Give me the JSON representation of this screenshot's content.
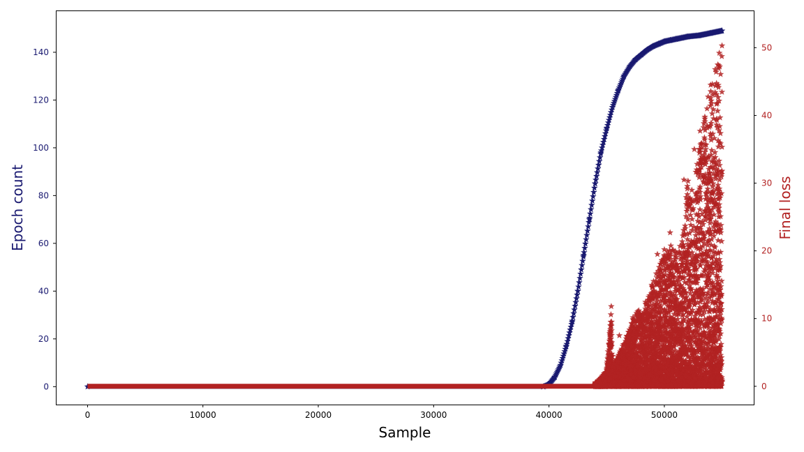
{
  "chart_data": {
    "type": "scatter",
    "title": "",
    "xlabel": "Sample",
    "ylabel": "Epoch count",
    "y2label": "Final loss",
    "xlim": [
      -2750,
      57750
    ],
    "ylim": [
      -7.5,
      157.5
    ],
    "y2lim": [
      -2.7,
      55.5
    ],
    "x_ticks": [
      0,
      10000,
      20000,
      30000,
      40000,
      50000
    ],
    "x_tick_labels": [
      "0",
      "10000",
      "20000",
      "30000",
      "40000",
      "50000"
    ],
    "y_ticks": [
      0,
      20,
      40,
      60,
      80,
      100,
      120,
      140
    ],
    "y_tick_labels": [
      "0",
      "20",
      "40",
      "60",
      "80",
      "100",
      "120",
      "140"
    ],
    "y2_ticks": [
      0,
      10,
      20,
      30,
      40,
      50
    ],
    "y2_tick_labels": [
      "0",
      "10",
      "20",
      "30",
      "40",
      "50"
    ],
    "grid": false,
    "legend": "none",
    "marker": "star",
    "series": [
      {
        "role": "epoch-count",
        "axis": "left",
        "color": "#191970",
        "x": [
          0,
          39500,
          40000,
          40500,
          41000,
          41500,
          42000,
          42500,
          43000,
          43500,
          44000,
          44500,
          45000,
          45500,
          46000,
          46500,
          47000,
          47500,
          48000,
          48500,
          49000,
          49500,
          50000,
          50500,
          51000,
          51500,
          52000,
          53000,
          54000,
          55000
        ],
        "y": [
          0,
          0,
          1,
          4,
          9,
          17,
          27,
          40,
          55,
          70,
          85,
          98,
          108,
          117,
          124,
          130,
          134,
          137,
          139,
          141,
          142.5,
          143.5,
          144.5,
          145,
          145.5,
          146,
          146.5,
          147,
          148,
          149
        ]
      },
      {
        "role": "final-loss",
        "axis": "right",
        "color": "#b22222",
        "x": [
          0,
          44000,
          44500,
          45000,
          45400,
          45500,
          46000,
          46500,
          47000,
          47500,
          48000,
          48500,
          49000,
          49500,
          50000,
          50500,
          51000,
          51500,
          52000,
          52500,
          53000,
          53500,
          54000,
          54500,
          55000
        ],
        "y_max": [
          0,
          0.5,
          1.2,
          2.5,
          11.8,
          3,
          4.5,
          6.5,
          8.5,
          11.5,
          11,
          13,
          15.5,
          17.5,
          19.5,
          21,
          20,
          21,
          30.5,
          29,
          35,
          40,
          45,
          48,
          50.5
        ],
        "outliers": [
          [
            45400,
            11.8
          ],
          [
            46100,
            7.5
          ],
          [
            47300,
            9.8
          ],
          [
            48200,
            10.5
          ],
          [
            49400,
            19.5
          ],
          [
            50000,
            20.2
          ],
          [
            50500,
            22.7
          ],
          [
            51700,
            30.5
          ],
          [
            52600,
            35
          ],
          [
            53100,
            37.7
          ],
          [
            53700,
            41
          ],
          [
            54400,
            43.4
          ],
          [
            54800,
            47.2
          ],
          [
            55000,
            50.3
          ]
        ]
      }
    ]
  }
}
